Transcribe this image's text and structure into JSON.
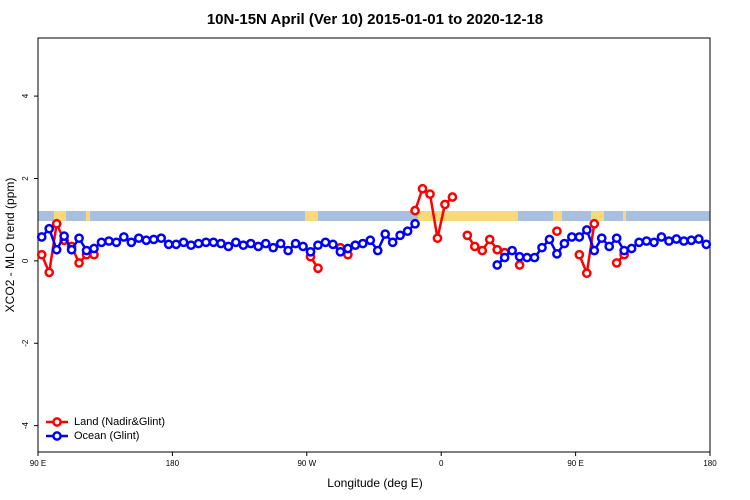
{
  "chart_data": {
    "type": "line",
    "title": "10N-15N April (Ver 10)   2015-01-01 to 2020-12-18",
    "x_label": "Longitude (deg E)",
    "y_label": "XCO2 - MLO trend (ppm)",
    "xlim": [
      90,
      540
    ],
    "ylim": [
      -4.64,
      5.41
    ],
    "xticks": [
      {
        "value": 90,
        "label": "90 E"
      },
      180,
      {
        "value": 270,
        "label": "90 W"
      },
      {
        "value": 360,
        "label": "0"
      },
      {
        "value": 450,
        "label": "90 E"
      },
      {
        "value": 540,
        "label": "180"
      }
    ],
    "yticks": [
      -4,
      -2,
      0,
      2,
      4
    ],
    "legend": "bottom-left",
    "x": [
      92.5,
      97.5,
      102.5,
      107.5,
      112.5,
      117.5,
      122.5,
      127.5,
      132.5,
      137.5,
      142.5,
      147.5,
      152.5,
      157.5,
      162.5,
      167.5,
      172.5,
      177.5,
      182.5,
      187.5,
      192.5,
      197.5,
      202.5,
      207.5,
      212.5,
      217.5,
      222.5,
      227.5,
      232.5,
      237.5,
      242.5,
      247.5,
      252.5,
      257.5,
      262.5,
      267.5,
      272.5,
      277.5,
      282.5,
      287.5,
      292.5,
      297.5,
      302.5,
      307.5,
      312.5,
      317.5,
      322.5,
      327.5,
      332.5,
      337.5,
      342.5,
      347.5,
      352.5,
      357.5,
      362.5,
      367.5,
      372.5,
      377.5,
      382.5,
      387.5,
      392.5,
      397.5,
      402.5,
      407.5,
      412.5,
      417.5,
      422.5,
      427.5,
      432.5,
      437.5,
      442.5,
      447.5,
      452.5,
      457.5,
      462.5,
      467.5,
      472.5,
      477.5,
      482.5,
      487.5,
      492.5,
      497.5,
      502.5,
      507.5,
      512.5,
      517.5,
      522.5,
      527.5,
      532.5,
      537.5
    ],
    "series": [
      {
        "name": "Land (Nadir&Glint)",
        "color": "#ff0000",
        "values": [
          0.15,
          -0.28,
          0.9,
          0.5,
          0.35,
          -0.05,
          0.15,
          0.15,
          null,
          null,
          null,
          null,
          null,
          null,
          null,
          null,
          null,
          null,
          null,
          null,
          null,
          null,
          null,
          null,
          null,
          null,
          null,
          null,
          null,
          null,
          null,
          null,
          null,
          null,
          null,
          null,
          0.1,
          -0.18,
          null,
          null,
          0.32,
          0.15,
          null,
          null,
          null,
          null,
          null,
          null,
          null,
          null,
          1.22,
          1.75,
          1.62,
          0.55,
          1.37,
          1.55,
          null,
          0.62,
          0.35,
          0.25,
          0.52,
          0.27,
          0.2,
          null,
          -0.1,
          null,
          null,
          null,
          null,
          0.72,
          null,
          null,
          0.15,
          -0.3,
          0.9,
          null,
          null,
          -0.05,
          0.15,
          null,
          null,
          null,
          null,
          null,
          null,
          null,
          null,
          null,
          null,
          null
        ]
      },
      {
        "name": "Ocean (Glint)",
        "color": "#0000ff",
        "values": [
          0.58,
          0.78,
          0.27,
          0.6,
          0.27,
          0.55,
          0.25,
          0.3,
          0.45,
          0.48,
          0.45,
          0.58,
          0.45,
          0.55,
          0.5,
          0.52,
          0.55,
          0.4,
          0.4,
          0.45,
          0.38,
          0.42,
          0.45,
          0.45,
          0.42,
          0.35,
          0.45,
          0.38,
          0.42,
          0.35,
          0.42,
          0.32,
          0.42,
          0.25,
          0.42,
          0.35,
          0.22,
          0.38,
          0.45,
          0.4,
          0.22,
          0.3,
          0.38,
          0.42,
          0.5,
          0.25,
          0.65,
          0.45,
          0.62,
          0.72,
          0.9,
          null,
          null,
          null,
          null,
          null,
          null,
          null,
          null,
          null,
          null,
          -0.1,
          0.08,
          0.25,
          0.1,
          0.08,
          0.08,
          0.32,
          0.52,
          0.17,
          0.42,
          0.58,
          0.58,
          0.75,
          0.25,
          0.55,
          0.35,
          0.55,
          0.25,
          0.3,
          0.45,
          0.48,
          0.45,
          0.58,
          0.48,
          0.53,
          0.48,
          0.5,
          0.53,
          0.4
        ]
      }
    ]
  }
}
